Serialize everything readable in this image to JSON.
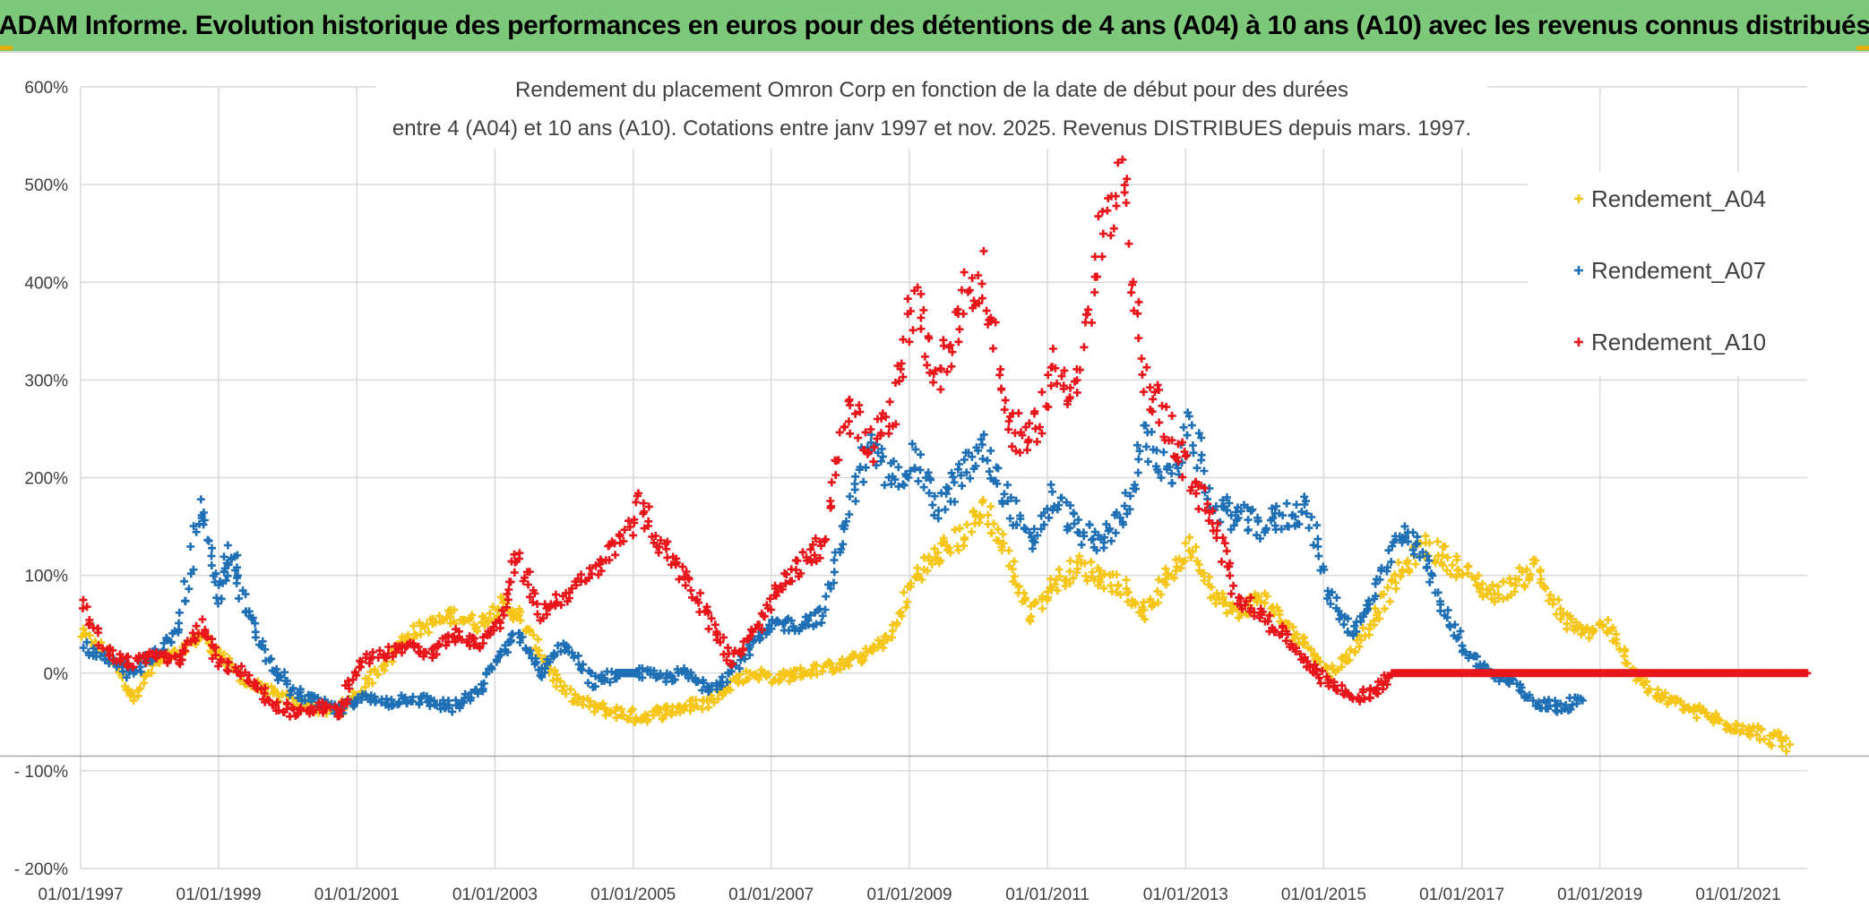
{
  "header": {
    "title": "ADAM Informe. Evolution historique des performances en euros pour des détentions de 4 ans (A04) à 10 ans (A10) avec les revenus connus distribués"
  },
  "colors": {
    "banner": "#7dc87b",
    "A04": "#f5c518",
    "A07": "#1f6fb5",
    "A10": "#e8161b",
    "grid": "#d9d9d9"
  },
  "chart_data": {
    "type": "scatter",
    "title_line1": "Rendement du placement Omron Corp en fonction de la date de début pour des durées",
    "title_line2": "entre 4 (A04) et 10 ans (A10). Cotations entre janv 1997 et nov. 2025. Revenus DISTRIBUES depuis mars. 1997.",
    "xlabel": "",
    "ylabel": "",
    "x_range": [
      "1997-01-01",
      "2022-01-01"
    ],
    "ylim": [
      -200,
      600
    ],
    "y_ticks": [
      "- 200%",
      "- 100%",
      "0%",
      "100%",
      "200%",
      "300%",
      "400%",
      "500%",
      "600%"
    ],
    "x_ticks": [
      "01/01/1997",
      "01/01/1999",
      "01/01/2001",
      "01/01/2003",
      "01/01/2005",
      "01/01/2007",
      "01/01/2009",
      "01/01/2011",
      "01/01/2013",
      "01/01/2015",
      "01/01/2017",
      "01/01/2019",
      "01/01/2021"
    ],
    "grid": true,
    "legend_position": "top-right",
    "series": [
      {
        "name": "Rendement_A04",
        "points": [
          [
            "1997-01-01",
            40
          ],
          [
            "1997-06-01",
            20
          ],
          [
            "1997-10-01",
            -25
          ],
          [
            "1998-02-01",
            10
          ],
          [
            "1998-06-01",
            20
          ],
          [
            "1998-10-01",
            40
          ],
          [
            "1999-01-01",
            20
          ],
          [
            "1999-06-01",
            -10
          ],
          [
            "1999-10-01",
            -20
          ],
          [
            "2000-02-01",
            -30
          ],
          [
            "2000-06-01",
            -35
          ],
          [
            "2000-10-01",
            -40
          ],
          [
            "2001-01-01",
            -20
          ],
          [
            "2001-06-01",
            10
          ],
          [
            "2001-10-01",
            40
          ],
          [
            "2002-02-01",
            50
          ],
          [
            "2002-06-01",
            60
          ],
          [
            "2002-10-01",
            50
          ],
          [
            "2003-02-01",
            70
          ],
          [
            "2003-05-01",
            60
          ],
          [
            "2003-09-01",
            20
          ],
          [
            "2004-01-01",
            -20
          ],
          [
            "2004-06-01",
            -35
          ],
          [
            "2004-10-01",
            -40
          ],
          [
            "2005-02-01",
            -45
          ],
          [
            "2005-06-01",
            -40
          ],
          [
            "2005-10-01",
            -35
          ],
          [
            "2006-02-01",
            -30
          ],
          [
            "2006-06-01",
            -10
          ],
          [
            "2006-10-01",
            0
          ],
          [
            "2007-02-01",
            -5
          ],
          [
            "2007-06-01",
            0
          ],
          [
            "2007-10-01",
            5
          ],
          [
            "2008-02-01",
            10
          ],
          [
            "2008-06-01",
            20
          ],
          [
            "2008-10-01",
            40
          ],
          [
            "2009-02-01",
            100
          ],
          [
            "2009-06-01",
            120
          ],
          [
            "2009-10-01",
            140
          ],
          [
            "2010-02-01",
            170
          ],
          [
            "2010-06-01",
            120
          ],
          [
            "2010-10-01",
            60
          ],
          [
            "2011-02-01",
            90
          ],
          [
            "2011-06-01",
            110
          ],
          [
            "2011-10-01",
            100
          ],
          [
            "2012-02-01",
            90
          ],
          [
            "2012-06-01",
            60
          ],
          [
            "2012-10-01",
            100
          ],
          [
            "2013-02-01",
            130
          ],
          [
            "2013-06-01",
            80
          ],
          [
            "2013-10-01",
            60
          ],
          [
            "2014-02-01",
            80
          ],
          [
            "2014-06-01",
            50
          ],
          [
            "2014-10-01",
            30
          ],
          [
            "2015-02-01",
            0
          ],
          [
            "2015-06-01",
            20
          ],
          [
            "2015-10-01",
            60
          ],
          [
            "2016-02-01",
            100
          ],
          [
            "2016-06-01",
            130
          ],
          [
            "2016-10-01",
            120
          ],
          [
            "2017-02-01",
            100
          ],
          [
            "2017-06-01",
            80
          ],
          [
            "2017-10-01",
            90
          ],
          [
            "2018-02-01",
            110
          ],
          [
            "2018-06-01",
            60
          ],
          [
            "2018-10-01",
            40
          ],
          [
            "2019-02-01",
            50
          ],
          [
            "2019-06-01",
            10
          ],
          [
            "2019-10-01",
            -20
          ],
          [
            "2020-02-01",
            -30
          ],
          [
            "2020-06-01",
            -40
          ],
          [
            "2020-10-01",
            -50
          ],
          [
            "2021-02-01",
            -55
          ],
          [
            "2021-06-01",
            -65
          ],
          [
            "2021-10-01",
            -73
          ]
        ]
      },
      {
        "name": "Rendement_A07",
        "points": [
          [
            "1997-01-01",
            30
          ],
          [
            "1997-06-01",
            10
          ],
          [
            "1997-10-01",
            0
          ],
          [
            "1998-02-01",
            20
          ],
          [
            "1998-06-01",
            40
          ],
          [
            "1998-10-01",
            170
          ],
          [
            "1999-01-01",
            80
          ],
          [
            "1999-03-01",
            130
          ],
          [
            "1999-06-01",
            60
          ],
          [
            "1999-10-01",
            10
          ],
          [
            "2000-02-01",
            -20
          ],
          [
            "2000-06-01",
            -30
          ],
          [
            "2000-10-01",
            -40
          ],
          [
            "2001-01-01",
            -25
          ],
          [
            "2001-06-01",
            -30
          ],
          [
            "2001-10-01",
            -25
          ],
          [
            "2002-02-01",
            -30
          ],
          [
            "2002-06-01",
            -35
          ],
          [
            "2002-10-01",
            -20
          ],
          [
            "2003-02-01",
            20
          ],
          [
            "2003-05-01",
            40
          ],
          [
            "2003-09-01",
            0
          ],
          [
            "2004-01-01",
            30
          ],
          [
            "2004-06-01",
            -10
          ],
          [
            "2004-10-01",
            0
          ],
          [
            "2005-02-01",
            0
          ],
          [
            "2005-06-01",
            -5
          ],
          [
            "2005-10-01",
            0
          ],
          [
            "2006-02-01",
            -15
          ],
          [
            "2006-06-01",
            0
          ],
          [
            "2006-10-01",
            30
          ],
          [
            "2007-02-01",
            50
          ],
          [
            "2007-06-01",
            50
          ],
          [
            "2007-10-01",
            60
          ],
          [
            "2008-02-01",
            160
          ],
          [
            "2008-06-01",
            230
          ],
          [
            "2008-10-01",
            200
          ],
          [
            "2009-02-01",
            220
          ],
          [
            "2009-06-01",
            170
          ],
          [
            "2009-10-01",
            200
          ],
          [
            "2010-02-01",
            230
          ],
          [
            "2010-06-01",
            180
          ],
          [
            "2010-10-01",
            130
          ],
          [
            "2011-02-01",
            180
          ],
          [
            "2011-06-01",
            150
          ],
          [
            "2011-10-01",
            130
          ],
          [
            "2012-02-01",
            160
          ],
          [
            "2012-06-01",
            240
          ],
          [
            "2012-10-01",
            200
          ],
          [
            "2013-02-01",
            250
          ],
          [
            "2013-06-01",
            170
          ],
          [
            "2013-10-01",
            160
          ],
          [
            "2014-02-01",
            150
          ],
          [
            "2014-06-01",
            160
          ],
          [
            "2014-10-01",
            170
          ],
          [
            "2015-02-01",
            80
          ],
          [
            "2015-06-01",
            40
          ],
          [
            "2015-10-01",
            80
          ],
          [
            "2016-02-01",
            140
          ],
          [
            "2016-06-01",
            130
          ],
          [
            "2016-10-01",
            60
          ],
          [
            "2017-02-01",
            20
          ],
          [
            "2017-06-01",
            0
          ],
          [
            "2017-10-01",
            -10
          ],
          [
            "2018-02-01",
            -30
          ],
          [
            "2018-06-01",
            -35
          ],
          [
            "2018-10-01",
            -28
          ]
        ]
      },
      {
        "name": "Rendement_A10",
        "points": [
          [
            "1997-01-01",
            70
          ],
          [
            "1997-06-01",
            20
          ],
          [
            "1997-10-01",
            10
          ],
          [
            "1998-02-01",
            20
          ],
          [
            "1998-06-01",
            10
          ],
          [
            "1998-10-01",
            50
          ],
          [
            "1999-01-01",
            10
          ],
          [
            "1999-06-01",
            0
          ],
          [
            "1999-10-01",
            -30
          ],
          [
            "2000-02-01",
            -40
          ],
          [
            "2000-06-01",
            -35
          ],
          [
            "2000-10-01",
            -40
          ],
          [
            "2001-01-01",
            10
          ],
          [
            "2001-06-01",
            20
          ],
          [
            "2001-10-01",
            30
          ],
          [
            "2002-02-01",
            20
          ],
          [
            "2002-06-01",
            40
          ],
          [
            "2002-10-01",
            30
          ],
          [
            "2003-02-01",
            50
          ],
          [
            "2003-05-01",
            120
          ],
          [
            "2003-09-01",
            60
          ],
          [
            "2004-01-01",
            80
          ],
          [
            "2004-06-01",
            100
          ],
          [
            "2004-10-01",
            130
          ],
          [
            "2005-02-01",
            170
          ],
          [
            "2005-06-01",
            130
          ],
          [
            "2005-10-01",
            100
          ],
          [
            "2006-02-01",
            60
          ],
          [
            "2006-06-01",
            10
          ],
          [
            "2006-10-01",
            40
          ],
          [
            "2007-02-01",
            80
          ],
          [
            "2007-06-01",
            110
          ],
          [
            "2007-10-01",
            130
          ],
          [
            "2008-02-01",
            280
          ],
          [
            "2008-06-01",
            230
          ],
          [
            "2008-10-01",
            260
          ],
          [
            "2009-02-01",
            380
          ],
          [
            "2009-06-01",
            300
          ],
          [
            "2009-10-01",
            380
          ],
          [
            "2010-02-01",
            400
          ],
          [
            "2010-06-01",
            260
          ],
          [
            "2010-10-01",
            230
          ],
          [
            "2011-02-01",
            310
          ],
          [
            "2011-06-01",
            290
          ],
          [
            "2011-10-01",
            430
          ],
          [
            "2012-02-01",
            500
          ],
          [
            "2012-06-01",
            300
          ],
          [
            "2012-10-01",
            250
          ],
          [
            "2013-02-01",
            200
          ],
          [
            "2013-06-01",
            150
          ],
          [
            "2013-10-01",
            80
          ],
          [
            "2014-02-01",
            60
          ],
          [
            "2014-06-01",
            40
          ],
          [
            "2014-10-01",
            10
          ],
          [
            "2015-02-01",
            -10
          ],
          [
            "2015-06-01",
            -25
          ],
          [
            "2015-10-01",
            -20
          ],
          [
            "2016-01-01",
            0
          ],
          [
            "2017-01-01",
            0
          ],
          [
            "2018-01-01",
            0
          ],
          [
            "2019-01-01",
            0
          ],
          [
            "2020-01-01",
            0
          ],
          [
            "2021-01-01",
            0
          ],
          [
            "2022-01-01",
            0
          ]
        ]
      }
    ]
  }
}
